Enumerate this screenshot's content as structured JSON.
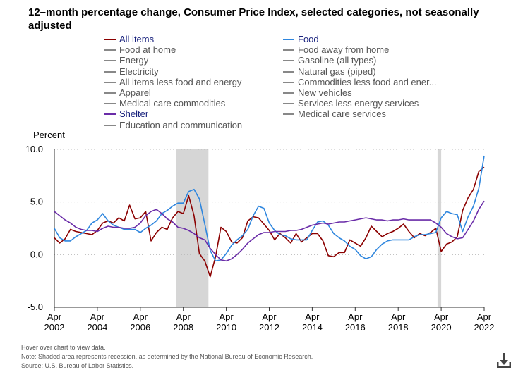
{
  "title": "12–month percentage change, Consumer Price Index, selected categories, not seasonally adjusted",
  "legend": [
    {
      "label": "All items",
      "color": "#8b0000",
      "active": true
    },
    {
      "label": "Food",
      "color": "#2e86de",
      "active": true
    },
    {
      "label": "Food at home",
      "color": "#888888",
      "active": false
    },
    {
      "label": "Food away from home",
      "color": "#888888",
      "active": false
    },
    {
      "label": "Energy",
      "color": "#888888",
      "active": false
    },
    {
      "label": "Gasoline (all types)",
      "color": "#888888",
      "active": false
    },
    {
      "label": "Electricity",
      "color": "#888888",
      "active": false
    },
    {
      "label": "Natural gas (piped)",
      "color": "#888888",
      "active": false
    },
    {
      "label": "All items less food and energy",
      "color": "#888888",
      "active": false
    },
    {
      "label": "Commodities less food and ener...",
      "color": "#888888",
      "active": false
    },
    {
      "label": "Apparel",
      "color": "#888888",
      "active": false
    },
    {
      "label": "New vehicles",
      "color": "#888888",
      "active": false
    },
    {
      "label": "Medical care commodities",
      "color": "#888888",
      "active": false
    },
    {
      "label": "Services less energy services",
      "color": "#888888",
      "active": false
    },
    {
      "label": "Shelter",
      "color": "#6a2ca8",
      "active": true
    },
    {
      "label": "Medical care services",
      "color": "#888888",
      "active": false
    },
    {
      "label": "Education and communication",
      "color": "#888888",
      "active": false
    }
  ],
  "footnotes": [
    "Hover over chart to view data.",
    "Note: Shaded area represents recession, as determined by the National Bureau of Economic Research.",
    "Source: U.S. Bureau of Labor Statistics."
  ],
  "download_icon": "download-icon",
  "chart_data": {
    "type": "line",
    "ylabel": "Percent",
    "ylim": [
      -5.0,
      10.0
    ],
    "yticks": [
      "10.0",
      "5.0",
      "0.0",
      "-5.0"
    ],
    "xlim": [
      2002.25,
      2022.25
    ],
    "xticks": [
      {
        "month": "Apr",
        "year": "2002",
        "x": 2002.25
      },
      {
        "month": "Apr",
        "year": "2004",
        "x": 2004.25
      },
      {
        "month": "Apr",
        "year": "2006",
        "x": 2006.25
      },
      {
        "month": "Apr",
        "year": "2008",
        "x": 2008.25
      },
      {
        "month": "Apr",
        "year": "2010",
        "x": 2010.25
      },
      {
        "month": "Apr",
        "year": "2012",
        "x": 2012.25
      },
      {
        "month": "Apr",
        "year": "2014",
        "x": 2014.25
      },
      {
        "month": "Apr",
        "year": "2016",
        "x": 2016.25
      },
      {
        "month": "Apr",
        "year": "2018",
        "x": 2018.25
      },
      {
        "month": "Apr",
        "year": "2020",
        "x": 2020.25
      },
      {
        "month": "Apr",
        "year": "2022",
        "x": 2022.25
      }
    ],
    "grid": "horizontal dotted",
    "recessions": [
      [
        2007.92,
        2009.42
      ],
      [
        2020.08,
        2020.25
      ]
    ],
    "series": [
      {
        "name": "All items",
        "color": "#8b0000",
        "points": [
          [
            2002.25,
            1.6
          ],
          [
            2002.5,
            1.1
          ],
          [
            2002.75,
            1.5
          ],
          [
            2003.0,
            2.4
          ],
          [
            2003.25,
            2.2
          ],
          [
            2003.5,
            2.1
          ],
          [
            2003.75,
            2.0
          ],
          [
            2004.0,
            1.9
          ],
          [
            2004.25,
            2.3
          ],
          [
            2004.5,
            3.0
          ],
          [
            2004.75,
            3.2
          ],
          [
            2005.0,
            3.0
          ],
          [
            2005.25,
            3.5
          ],
          [
            2005.5,
            3.2
          ],
          [
            2005.75,
            4.7
          ],
          [
            2006.0,
            3.4
          ],
          [
            2006.25,
            3.5
          ],
          [
            2006.5,
            4.1
          ],
          [
            2006.75,
            1.3
          ],
          [
            2007.0,
            2.1
          ],
          [
            2007.25,
            2.6
          ],
          [
            2007.5,
            2.4
          ],
          [
            2007.75,
            3.5
          ],
          [
            2008.0,
            4.1
          ],
          [
            2008.25,
            3.9
          ],
          [
            2008.5,
            5.6
          ],
          [
            2008.75,
            3.7
          ],
          [
            2009.0,
            0.1
          ],
          [
            2009.25,
            -0.6
          ],
          [
            2009.5,
            -2.1
          ],
          [
            2009.75,
            -0.2
          ],
          [
            2010.0,
            2.6
          ],
          [
            2010.25,
            2.2
          ],
          [
            2010.5,
            1.2
          ],
          [
            2010.75,
            1.1
          ],
          [
            2011.0,
            1.6
          ],
          [
            2011.25,
            3.2
          ],
          [
            2011.5,
            3.6
          ],
          [
            2011.75,
            3.5
          ],
          [
            2012.0,
            2.9
          ],
          [
            2012.25,
            2.3
          ],
          [
            2012.5,
            1.4
          ],
          [
            2012.75,
            2.0
          ],
          [
            2013.0,
            1.6
          ],
          [
            2013.25,
            1.1
          ],
          [
            2013.5,
            2.0
          ],
          [
            2013.75,
            1.2
          ],
          [
            2014.0,
            1.6
          ],
          [
            2014.25,
            2.0
          ],
          [
            2014.5,
            2.0
          ],
          [
            2014.75,
            1.3
          ],
          [
            2015.0,
            -0.1
          ],
          [
            2015.25,
            -0.2
          ],
          [
            2015.5,
            0.2
          ],
          [
            2015.75,
            0.2
          ],
          [
            2016.0,
            1.4
          ],
          [
            2016.25,
            1.1
          ],
          [
            2016.5,
            0.8
          ],
          [
            2016.75,
            1.6
          ],
          [
            2017.0,
            2.7
          ],
          [
            2017.25,
            2.2
          ],
          [
            2017.5,
            1.7
          ],
          [
            2017.75,
            2.0
          ],
          [
            2018.0,
            2.2
          ],
          [
            2018.25,
            2.5
          ],
          [
            2018.5,
            2.9
          ],
          [
            2018.75,
            2.2
          ],
          [
            2019.0,
            1.6
          ],
          [
            2019.25,
            2.0
          ],
          [
            2019.5,
            1.8
          ],
          [
            2019.75,
            2.1
          ],
          [
            2020.0,
            2.5
          ],
          [
            2020.25,
            0.3
          ],
          [
            2020.5,
            1.0
          ],
          [
            2020.75,
            1.2
          ],
          [
            2021.0,
            1.7
          ],
          [
            2021.25,
            4.2
          ],
          [
            2021.5,
            5.4
          ],
          [
            2021.75,
            6.2
          ],
          [
            2022.0,
            7.9
          ],
          [
            2022.25,
            8.3
          ]
        ]
      },
      {
        "name": "Food",
        "color": "#2e86de",
        "points": [
          [
            2002.25,
            2.5
          ],
          [
            2002.5,
            1.6
          ],
          [
            2002.75,
            1.3
          ],
          [
            2003.0,
            1.3
          ],
          [
            2003.25,
            1.7
          ],
          [
            2003.5,
            2.0
          ],
          [
            2003.75,
            2.3
          ],
          [
            2004.0,
            3.0
          ],
          [
            2004.25,
            3.3
          ],
          [
            2004.5,
            3.9
          ],
          [
            2004.75,
            3.2
          ],
          [
            2005.0,
            2.8
          ],
          [
            2005.25,
            2.6
          ],
          [
            2005.5,
            2.4
          ],
          [
            2005.75,
            2.4
          ],
          [
            2006.0,
            2.4
          ],
          [
            2006.25,
            2.1
          ],
          [
            2006.5,
            2.5
          ],
          [
            2006.75,
            2.8
          ],
          [
            2007.0,
            3.2
          ],
          [
            2007.25,
            3.9
          ],
          [
            2007.5,
            4.2
          ],
          [
            2007.75,
            4.6
          ],
          [
            2008.0,
            4.9
          ],
          [
            2008.25,
            4.9
          ],
          [
            2008.5,
            6.0
          ],
          [
            2008.75,
            6.2
          ],
          [
            2009.0,
            5.3
          ],
          [
            2009.25,
            2.9
          ],
          [
            2009.5,
            0.4
          ],
          [
            2009.75,
            -0.6
          ],
          [
            2010.0,
            -0.5
          ],
          [
            2010.25,
            0.1
          ],
          [
            2010.5,
            0.9
          ],
          [
            2010.75,
            1.4
          ],
          [
            2011.0,
            1.8
          ],
          [
            2011.25,
            2.4
          ],
          [
            2011.5,
            3.7
          ],
          [
            2011.75,
            4.6
          ],
          [
            2012.0,
            4.4
          ],
          [
            2012.25,
            3.0
          ],
          [
            2012.5,
            2.3
          ],
          [
            2012.75,
            1.9
          ],
          [
            2013.0,
            1.8
          ],
          [
            2013.25,
            1.5
          ],
          [
            2013.5,
            1.4
          ],
          [
            2013.75,
            1.4
          ],
          [
            2014.0,
            1.4
          ],
          [
            2014.25,
            2.3
          ],
          [
            2014.5,
            3.1
          ],
          [
            2014.75,
            3.2
          ],
          [
            2015.0,
            2.8
          ],
          [
            2015.25,
            2.0
          ],
          [
            2015.5,
            1.6
          ],
          [
            2015.75,
            1.3
          ],
          [
            2016.0,
            0.8
          ],
          [
            2016.25,
            0.5
          ],
          [
            2016.5,
            -0.1
          ],
          [
            2016.75,
            -0.4
          ],
          [
            2017.0,
            -0.2
          ],
          [
            2017.25,
            0.5
          ],
          [
            2017.5,
            1.0
          ],
          [
            2017.75,
            1.3
          ],
          [
            2018.0,
            1.4
          ],
          [
            2018.25,
            1.4
          ],
          [
            2018.5,
            1.4
          ],
          [
            2018.75,
            1.4
          ],
          [
            2019.0,
            1.7
          ],
          [
            2019.25,
            1.9
          ],
          [
            2019.5,
            1.9
          ],
          [
            2019.75,
            2.0
          ],
          [
            2020.0,
            2.1
          ],
          [
            2020.25,
            3.5
          ],
          [
            2020.5,
            4.1
          ],
          [
            2020.75,
            3.9
          ],
          [
            2021.0,
            3.8
          ],
          [
            2021.25,
            2.2
          ],
          [
            2021.5,
            3.6
          ],
          [
            2021.75,
            4.6
          ],
          [
            2022.0,
            6.3
          ],
          [
            2022.25,
            9.4
          ]
        ]
      },
      {
        "name": "Shelter",
        "color": "#6a2ca8",
        "points": [
          [
            2002.25,
            4.1
          ],
          [
            2002.5,
            3.7
          ],
          [
            2002.75,
            3.3
          ],
          [
            2003.0,
            3.0
          ],
          [
            2003.25,
            2.6
          ],
          [
            2003.5,
            2.4
          ],
          [
            2003.75,
            2.3
          ],
          [
            2004.0,
            2.3
          ],
          [
            2004.25,
            2.2
          ],
          [
            2004.5,
            2.5
          ],
          [
            2004.75,
            2.7
          ],
          [
            2005.0,
            2.6
          ],
          [
            2005.25,
            2.6
          ],
          [
            2005.5,
            2.5
          ],
          [
            2005.75,
            2.5
          ],
          [
            2006.0,
            2.6
          ],
          [
            2006.25,
            3.0
          ],
          [
            2006.5,
            3.7
          ],
          [
            2006.75,
            4.1
          ],
          [
            2007.0,
            4.3
          ],
          [
            2007.25,
            3.9
          ],
          [
            2007.5,
            3.4
          ],
          [
            2007.75,
            3.1
          ],
          [
            2008.0,
            2.6
          ],
          [
            2008.25,
            2.5
          ],
          [
            2008.5,
            2.3
          ],
          [
            2008.75,
            2.0
          ],
          [
            2009.0,
            1.6
          ],
          [
            2009.25,
            1.4
          ],
          [
            2009.5,
            0.6
          ],
          [
            2009.75,
            0.0
          ],
          [
            2010.0,
            -0.5
          ],
          [
            2010.25,
            -0.6
          ],
          [
            2010.5,
            -0.4
          ],
          [
            2010.75,
            0.0
          ],
          [
            2011.0,
            0.5
          ],
          [
            2011.25,
            1.1
          ],
          [
            2011.5,
            1.5
          ],
          [
            2011.75,
            1.9
          ],
          [
            2012.0,
            2.1
          ],
          [
            2012.25,
            2.1
          ],
          [
            2012.5,
            2.2
          ],
          [
            2012.75,
            2.2
          ],
          [
            2013.0,
            2.2
          ],
          [
            2013.25,
            2.3
          ],
          [
            2013.5,
            2.3
          ],
          [
            2013.75,
            2.4
          ],
          [
            2014.0,
            2.6
          ],
          [
            2014.25,
            2.8
          ],
          [
            2014.5,
            2.9
          ],
          [
            2014.75,
            3.0
          ],
          [
            2015.0,
            2.9
          ],
          [
            2015.25,
            3.0
          ],
          [
            2015.5,
            3.1
          ],
          [
            2015.75,
            3.1
          ],
          [
            2016.0,
            3.2
          ],
          [
            2016.25,
            3.3
          ],
          [
            2016.5,
            3.4
          ],
          [
            2016.75,
            3.5
          ],
          [
            2017.0,
            3.4
          ],
          [
            2017.25,
            3.3
          ],
          [
            2017.5,
            3.3
          ],
          [
            2017.75,
            3.2
          ],
          [
            2018.0,
            3.3
          ],
          [
            2018.25,
            3.3
          ],
          [
            2018.5,
            3.4
          ],
          [
            2018.75,
            3.3
          ],
          [
            2019.0,
            3.3
          ],
          [
            2019.25,
            3.3
          ],
          [
            2019.5,
            3.3
          ],
          [
            2019.75,
            3.3
          ],
          [
            2020.0,
            3.0
          ],
          [
            2020.25,
            2.6
          ],
          [
            2020.5,
            2.0
          ],
          [
            2020.75,
            1.7
          ],
          [
            2021.0,
            1.5
          ],
          [
            2021.25,
            1.6
          ],
          [
            2021.5,
            2.4
          ],
          [
            2021.75,
            3.2
          ],
          [
            2022.0,
            4.3
          ],
          [
            2022.25,
            5.1
          ]
        ]
      }
    ]
  }
}
